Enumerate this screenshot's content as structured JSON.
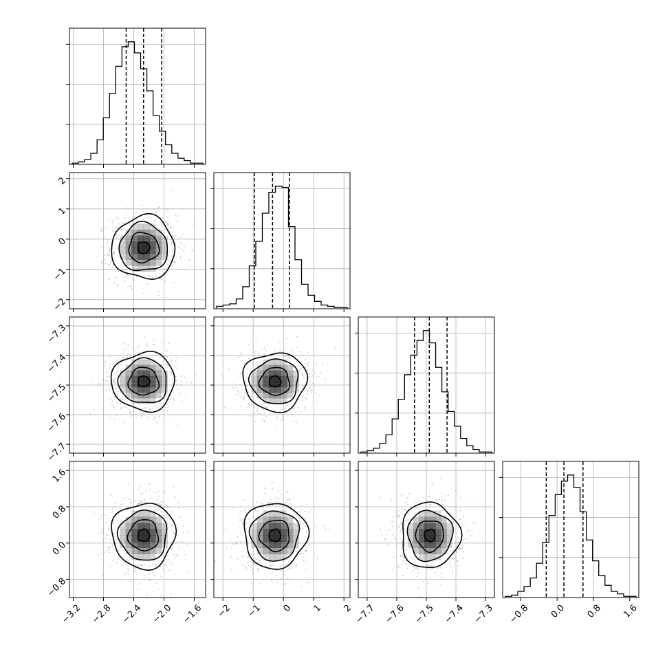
{
  "chart_data": {
    "type": "corner",
    "n_params": 4,
    "params": [
      {
        "axis_range": [
          -3.25,
          -1.45
        ],
        "tick_labels": [
          "−3.2",
          "−2.8",
          "−2.4",
          "−2.0",
          "−1.6"
        ],
        "tick_values": [
          -3.2,
          -2.8,
          -2.4,
          -2.0,
          -1.6
        ],
        "quantiles": [
          -2.5,
          -2.27,
          -2.03
        ],
        "hist_bins": 21,
        "hist_counts": [
          1,
          2,
          4,
          9,
          20,
          38,
          58,
          80,
          96,
          100,
          91,
          78,
          60,
          40,
          27,
          16,
          9,
          5,
          3,
          1,
          1
        ],
        "center": -2.27,
        "sigma": 0.22
      },
      {
        "axis_range": [
          -2.3,
          2.2
        ],
        "tick_labels": [
          "−2",
          "−1",
          "0",
          "1",
          "2"
        ],
        "tick_values": [
          -2,
          -1,
          0,
          1,
          2
        ],
        "quantiles": [
          -0.96,
          -0.36,
          0.2
        ],
        "hist_bins": 20,
        "hist_counts": [
          2,
          3,
          4,
          8,
          18,
          35,
          55,
          78,
          95,
          100,
          99,
          67,
          40,
          20,
          11,
          6,
          3,
          2,
          1,
          1
        ],
        "center": -0.28,
        "sigma": 0.55
      },
      {
        "axis_range": [
          -7.73,
          -7.27
        ],
        "tick_labels": [
          "−7.7",
          "−7.6",
          "−7.5",
          "−7.4",
          "−7.3"
        ],
        "tick_values": [
          -7.7,
          -7.6,
          -7.5,
          -7.4,
          -7.3
        ],
        "quantiles": [
          -7.54,
          -7.49,
          -7.43
        ],
        "hist_bins": 21,
        "hist_counts": [
          1,
          2,
          4,
          8,
          15,
          28,
          44,
          64,
          80,
          92,
          100,
          90,
          70,
          50,
          34,
          22,
          12,
          6,
          3,
          1,
          1
        ],
        "center": -7.488,
        "sigma": 0.052
      },
      {
        "axis_range": [
          -1.2,
          1.8
        ],
        "tick_labels": [
          "−0.8",
          "0.0",
          "0.8",
          "1.6"
        ],
        "tick_values": [
          -0.8,
          0.0,
          0.8,
          1.6
        ],
        "quantiles": [
          -0.24,
          0.15,
          0.57
        ],
        "hist_bins": 21,
        "hist_counts": [
          1,
          2,
          5,
          9,
          16,
          28,
          45,
          67,
          84,
          95,
          100,
          90,
          70,
          47,
          30,
          18,
          10,
          5,
          3,
          1,
          1
        ],
        "center": 0.17,
        "sigma": 0.38
      }
    ],
    "quantiles_shown": [
      0.16,
      0.5,
      0.84
    ],
    "colors": {
      "line": "#000000",
      "grid": "#b0b0b0",
      "points": "#999999",
      "density": "#000000"
    },
    "grid": true
  }
}
